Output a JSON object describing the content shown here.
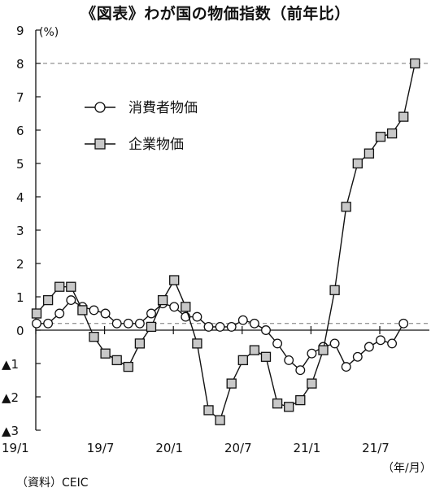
{
  "title": "《図表》わが国の物価指数（前年比）",
  "source_note": "（資料）CEIC",
  "chart_data": {
    "type": "line",
    "title": "《図表》わが国の物価指数（前年比）",
    "y_unit": "(%)",
    "x_unit": "（年/月）",
    "ylim": [
      -3,
      9
    ],
    "y_ticks": [
      {
        "value": 9,
        "label": "9"
      },
      {
        "value": 8,
        "label": "8"
      },
      {
        "value": 7,
        "label": "7"
      },
      {
        "value": 6,
        "label": "6"
      },
      {
        "value": 5,
        "label": "5"
      },
      {
        "value": 4,
        "label": "4"
      },
      {
        "value": 3,
        "label": "3"
      },
      {
        "value": 2,
        "label": "2"
      },
      {
        "value": 1,
        "label": "1"
      },
      {
        "value": 0,
        "label": "0"
      },
      {
        "value": -1,
        "label": "▲1"
      },
      {
        "value": -2,
        "label": "▲2"
      },
      {
        "value": -3,
        "label": "▲3"
      }
    ],
    "x_ticks": [
      {
        "index": 0,
        "label": "19/1"
      },
      {
        "index": 6,
        "label": "19/7"
      },
      {
        "index": 12,
        "label": "20/1"
      },
      {
        "index": 18,
        "label": "20/7"
      },
      {
        "index": 24,
        "label": "21/1"
      },
      {
        "index": 30,
        "label": "21/7"
      }
    ],
    "categories": [
      "19/1",
      "19/2",
      "19/3",
      "19/4",
      "19/5",
      "19/6",
      "19/7",
      "19/8",
      "19/9",
      "19/10",
      "19/11",
      "19/12",
      "20/1",
      "20/2",
      "20/3",
      "20/4",
      "20/5",
      "20/6",
      "20/7",
      "20/8",
      "20/9",
      "20/10",
      "20/11",
      "20/12",
      "21/1",
      "21/2",
      "21/3",
      "21/4",
      "21/5",
      "21/6",
      "21/7",
      "21/8",
      "21/9",
      "21/10",
      "21/11",
      "21/12"
    ],
    "reference_lines": [
      {
        "value": 8.0,
        "style": "dashed"
      },
      {
        "value": 0.2,
        "style": "dashed"
      }
    ],
    "legend_position": "upper-left",
    "series": [
      {
        "name": "消費者物価",
        "marker": "circle",
        "values": [
          0.2,
          0.2,
          0.5,
          0.9,
          0.7,
          0.6,
          0.5,
          0.2,
          0.2,
          0.2,
          0.5,
          0.8,
          0.7,
          0.4,
          0.4,
          0.1,
          0.1,
          0.1,
          0.3,
          0.2,
          0.0,
          -0.4,
          -0.9,
          -1.2,
          -0.7,
          -0.5,
          -0.4,
          -1.1,
          -0.8,
          -0.5,
          -0.3,
          -0.4,
          0.2,
          null,
          null,
          null
        ]
      },
      {
        "name": "企業物価",
        "marker": "square",
        "values": [
          0.5,
          0.9,
          1.3,
          1.3,
          0.6,
          -0.2,
          -0.7,
          -0.9,
          -1.1,
          -0.4,
          0.1,
          0.9,
          1.5,
          0.7,
          -0.4,
          -2.4,
          -2.7,
          -1.6,
          -0.9,
          -0.6,
          -0.8,
          -2.2,
          -2.3,
          -2.1,
          -1.6,
          -0.6,
          1.2,
          3.7,
          5.0,
          5.3,
          5.8,
          5.9,
          6.4,
          8.0,
          null,
          null
        ]
      }
    ]
  }
}
